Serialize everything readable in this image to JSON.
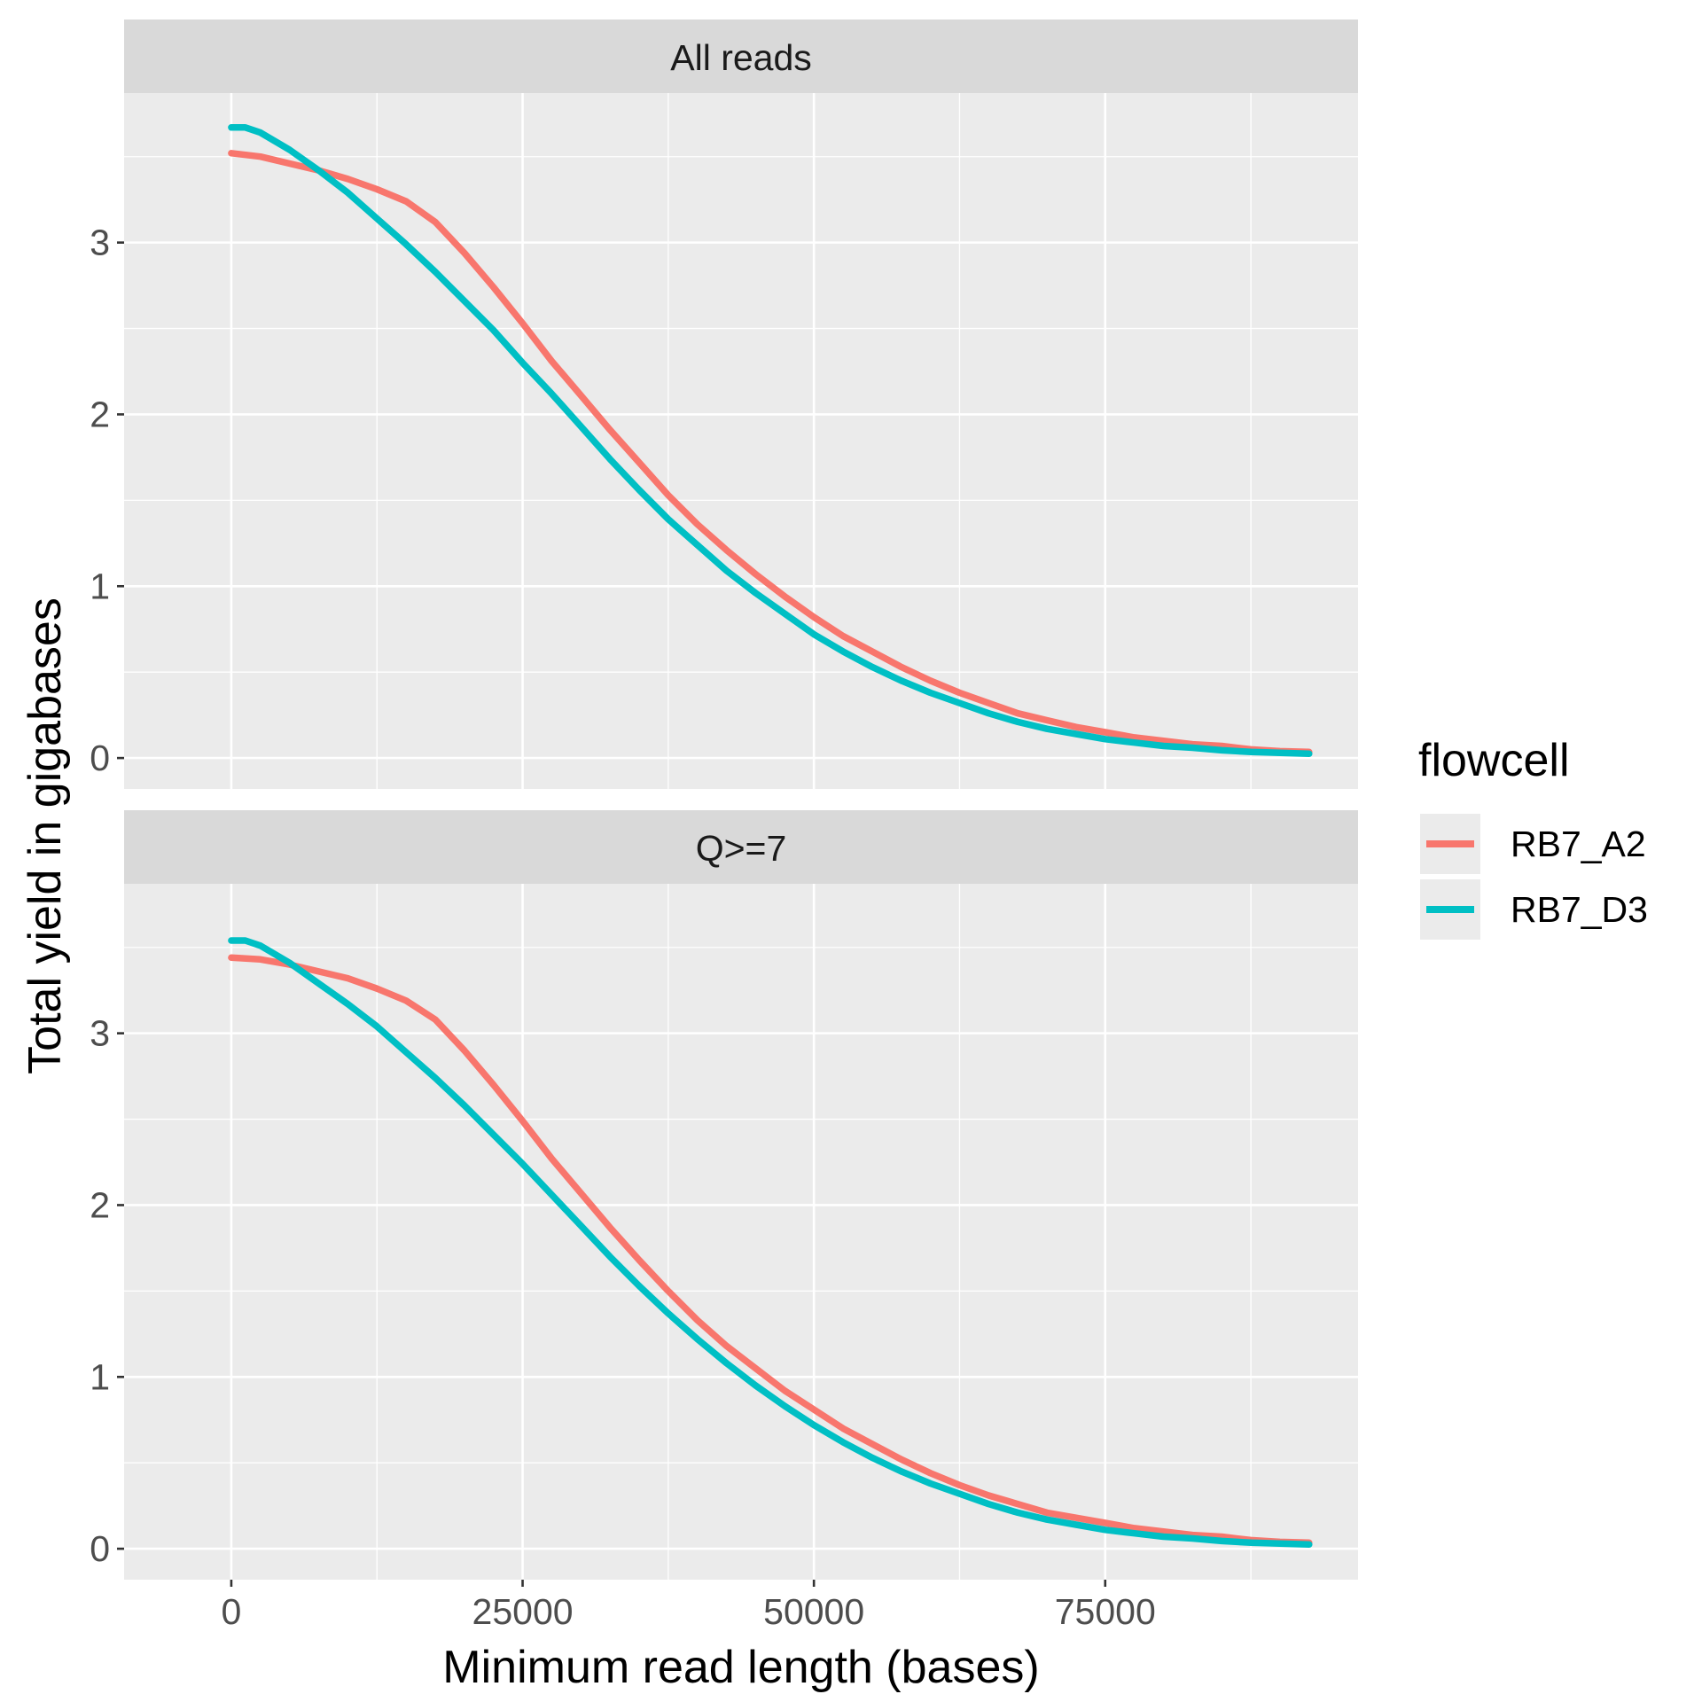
{
  "chart_data": {
    "type": "line",
    "xlabel": "Minimum read length (bases)",
    "ylabel": "Total yield in gigabases",
    "xlim": [
      -9200,
      96700
    ],
    "ylim": [
      -0.18,
      3.87
    ],
    "xticks": [
      0,
      25000,
      50000,
      75000
    ],
    "xtick_labels": [
      "0",
      "25000",
      "50000",
      "75000"
    ],
    "yticks": [
      0,
      1,
      2,
      3
    ],
    "ytick_labels": [
      "0",
      "1",
      "2",
      "3"
    ],
    "grid": true,
    "legend": {
      "title": "flowcell",
      "position": "right",
      "entries": [
        {
          "name": "RB7_A2",
          "color": "#F8766D"
        },
        {
          "name": "RB7_D3",
          "color": "#00BFC4"
        }
      ]
    },
    "panels": [
      {
        "strip_label": "All reads",
        "series": [
          {
            "name": "RB7_A2",
            "color": "#F8766D",
            "x": [
              0,
              2500,
              5000,
              7500,
              10000,
              12500,
              15000,
              17500,
              20000,
              22500,
              25000,
              27500,
              30000,
              32500,
              35000,
              37500,
              40000,
              42500,
              45000,
              47500,
              50000,
              52500,
              55000,
              57500,
              60000,
              62500,
              65000,
              67500,
              70000,
              72500,
              75000,
              77500,
              80000,
              82500,
              85000,
              87500,
              90000,
              92500
            ],
            "y": [
              3.52,
              3.5,
              3.46,
              3.42,
              3.37,
              3.31,
              3.24,
              3.12,
              2.94,
              2.74,
              2.53,
              2.31,
              2.11,
              1.91,
              1.72,
              1.53,
              1.36,
              1.21,
              1.07,
              0.94,
              0.82,
              0.71,
              0.62,
              0.53,
              0.45,
              0.38,
              0.32,
              0.26,
              0.22,
              0.18,
              0.15,
              0.12,
              0.1,
              0.08,
              0.07,
              0.05,
              0.04,
              0.035
            ]
          },
          {
            "name": "RB7_D3",
            "color": "#00BFC4",
            "x": [
              0,
              1200,
              2500,
              5000,
              7500,
              10000,
              12500,
              15000,
              17500,
              20000,
              22500,
              25000,
              27500,
              30000,
              32500,
              35000,
              37500,
              40000,
              42500,
              45000,
              47500,
              50000,
              52500,
              55000,
              57500,
              60000,
              62500,
              65000,
              67500,
              70000,
              72500,
              75000,
              77500,
              80000,
              82500,
              85000,
              87500,
              90000,
              92500
            ],
            "y": [
              3.67,
              3.67,
              3.64,
              3.54,
              3.42,
              3.29,
              3.14,
              2.99,
              2.83,
              2.66,
              2.49,
              2.3,
              2.12,
              1.93,
              1.74,
              1.56,
              1.39,
              1.24,
              1.09,
              0.96,
              0.84,
              0.72,
              0.62,
              0.53,
              0.45,
              0.38,
              0.32,
              0.26,
              0.21,
              0.17,
              0.14,
              0.11,
              0.09,
              0.07,
              0.06,
              0.045,
              0.035,
              0.03,
              0.025
            ]
          }
        ]
      },
      {
        "strip_label": "Q>=7",
        "series": [
          {
            "name": "RB7_A2",
            "color": "#F8766D",
            "x": [
              0,
              2500,
              5000,
              7500,
              10000,
              12500,
              15000,
              17500,
              20000,
              22500,
              25000,
              27500,
              30000,
              32500,
              35000,
              37500,
              40000,
              42500,
              45000,
              47500,
              50000,
              52500,
              55000,
              57500,
              60000,
              62500,
              65000,
              67500,
              70000,
              72500,
              75000,
              77500,
              80000,
              82500,
              85000,
              87500,
              90000,
              92500
            ],
            "y": [
              3.44,
              3.43,
              3.4,
              3.36,
              3.32,
              3.26,
              3.19,
              3.08,
              2.9,
              2.7,
              2.49,
              2.27,
              2.07,
              1.87,
              1.68,
              1.5,
              1.33,
              1.18,
              1.05,
              0.92,
              0.81,
              0.7,
              0.61,
              0.52,
              0.44,
              0.37,
              0.31,
              0.26,
              0.21,
              0.18,
              0.15,
              0.12,
              0.1,
              0.08,
              0.07,
              0.05,
              0.04,
              0.035
            ]
          },
          {
            "name": "RB7_D3",
            "color": "#00BFC4",
            "x": [
              0,
              1200,
              2500,
              5000,
              7500,
              10000,
              12500,
              15000,
              17500,
              20000,
              22500,
              25000,
              27500,
              30000,
              32500,
              35000,
              37500,
              40000,
              42500,
              45000,
              47500,
              50000,
              52500,
              55000,
              57500,
              60000,
              62500,
              65000,
              67500,
              70000,
              72500,
              75000,
              77500,
              80000,
              82500,
              85000,
              87500,
              90000,
              92500
            ],
            "y": [
              3.54,
              3.54,
              3.51,
              3.41,
              3.29,
              3.17,
              3.04,
              2.89,
              2.74,
              2.58,
              2.41,
              2.24,
              2.06,
              1.88,
              1.7,
              1.53,
              1.37,
              1.22,
              1.08,
              0.95,
              0.83,
              0.72,
              0.62,
              0.53,
              0.45,
              0.38,
              0.32,
              0.26,
              0.21,
              0.17,
              0.14,
              0.11,
              0.09,
              0.07,
              0.06,
              0.045,
              0.035,
              0.03,
              0.025
            ]
          }
        ]
      }
    ]
  }
}
